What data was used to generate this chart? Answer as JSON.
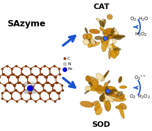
{
  "title": "SAzyme",
  "cat_label": "CAT",
  "sod_label": "SOD",
  "bg_color": "#ffffff",
  "graphene_color": "#8B3A0A",
  "n_color": "#c8c8c8",
  "fe_color": "#0000dd",
  "arrow_color": "#1a52cc",
  "enzyme_gold1": "#D4920A",
  "enzyme_gold2": "#C07808",
  "enzyme_dark": "#6B4A04",
  "enzyme_light": "#E8C060",
  "enzyme_cream": "#F0D898",
  "text_color": "#000000",
  "figsize": [
    2.19,
    1.89
  ],
  "dpi": 100,
  "legend": [
    {
      "label": "C",
      "color": "#8B3A0A",
      "ec": "#5A2000"
    },
    {
      "label": "N",
      "color": "#c8c8c8",
      "ec": "#888888"
    },
    {
      "label": "Fe",
      "color": "#0000dd",
      "ec": "#000088"
    }
  ]
}
